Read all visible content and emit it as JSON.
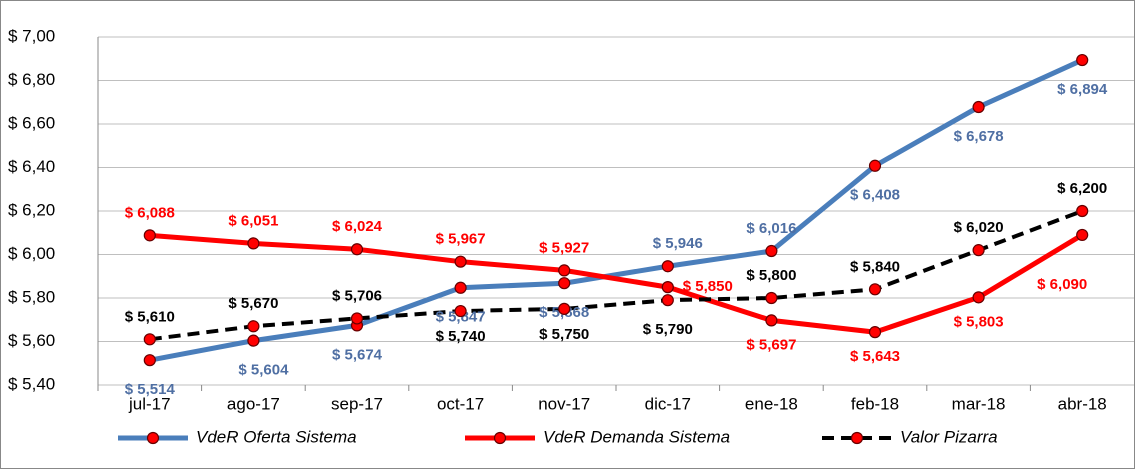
{
  "chart_data": {
    "type": "line",
    "categories": [
      "jul-17",
      "ago-17",
      "sep-17",
      "oct-17",
      "nov-17",
      "dic-17",
      "ene-18",
      "feb-18",
      "mar-18",
      "abr-18"
    ],
    "series": [
      {
        "name": "VdeR Oferta Sistema",
        "color": "#4a7ebb",
        "label_color": "#4f6fa3",
        "dashed": false,
        "values": [
          5.514,
          5.604,
          5.674,
          5.847,
          5.868,
          5.946,
          6.016,
          6.408,
          6.678,
          6.894
        ],
        "value_labels": [
          "$ 5,514",
          "$ 5,604",
          "$ 5,674",
          "$ 5,847",
          "$ 5,868",
          "$ 5,946",
          "$ 6,016",
          "$ 6,408",
          "$ 6,678",
          "$ 6,894"
        ]
      },
      {
        "name": "VdeR Demanda Sistema",
        "color": "#ff0000",
        "label_color": "#ff0000",
        "dashed": false,
        "values": [
          6.088,
          6.051,
          6.024,
          5.967,
          5.927,
          5.85,
          5.697,
          5.643,
          5.803,
          6.09
        ],
        "value_labels": [
          "$ 6,088",
          "$ 6,051",
          "$ 6,024",
          "$ 5,967",
          "$ 5,927",
          "$ 5,850",
          "$ 5,697",
          "$ 5,643",
          "$ 5,803",
          "$ 6,090"
        ]
      },
      {
        "name": "Valor Pizarra",
        "color": "#000000",
        "label_color": "#000000",
        "dashed": true,
        "values": [
          5.61,
          5.67,
          5.706,
          5.74,
          5.75,
          5.79,
          5.8,
          5.84,
          6.02,
          6.2
        ],
        "value_labels": [
          "$ 5,610",
          "$ 5,670",
          "$ 5,706",
          "$ 5,740",
          "$ 5,750",
          "$ 5,790",
          "$ 5,800",
          "$ 5,840",
          "$ 6,020",
          "$ 6,200"
        ]
      }
    ],
    "marker_color": "#ff0000",
    "ylim": [
      5.4,
      7.0
    ],
    "yticks": [
      {
        "value": 5.4,
        "label": "$ 5,40"
      },
      {
        "value": 5.6,
        "label": "$ 5,60"
      },
      {
        "value": 5.8,
        "label": "$ 5,80"
      },
      {
        "value": 6.0,
        "label": "$ 6,00"
      },
      {
        "value": 6.2,
        "label": "$ 6,20"
      },
      {
        "value": 6.4,
        "label": "$ 6,40"
      },
      {
        "value": 6.6,
        "label": "$ 6,60"
      },
      {
        "value": 6.8,
        "label": "$ 6,80"
      },
      {
        "value": 7.0,
        "label": "$ 7,00"
      }
    ],
    "grid": true
  }
}
